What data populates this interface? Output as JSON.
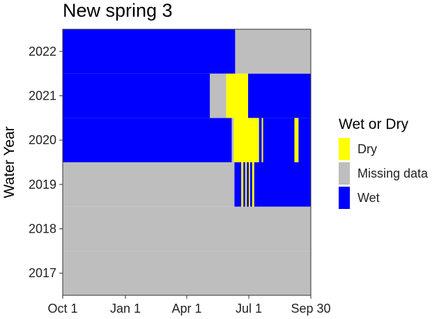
{
  "chart_data": {
    "type": "heatmap",
    "title": "New spring 3",
    "xlabel": "",
    "ylabel": "Water Year",
    "x_ticks": [
      "Oct 1",
      "Jan 1",
      "Apr 1",
      "Jul 1",
      "Sep 30"
    ],
    "x_tick_days": [
      0,
      92,
      182,
      273,
      364
    ],
    "x_range_days": [
      0,
      364
    ],
    "y_categories": [
      "2017",
      "2018",
      "2019",
      "2020",
      "2021",
      "2022"
    ],
    "legend": {
      "title": "Wet or Dry",
      "position": "right",
      "entries": [
        {
          "key": "Dry",
          "label": "Dry",
          "color": "#ffff00"
        },
        {
          "key": "Missing",
          "label": "Missing data",
          "color": "#bebebe"
        },
        {
          "key": "Wet",
          "label": "Wet",
          "color": "#0000ff"
        }
      ]
    },
    "series": [
      {
        "year": "2017",
        "segments": [
          {
            "start": 0,
            "end": 365,
            "status": "Missing"
          }
        ]
      },
      {
        "year": "2018",
        "segments": [
          {
            "start": 0,
            "end": 365,
            "status": "Missing"
          }
        ]
      },
      {
        "year": "2019",
        "segments": [
          {
            "start": 0,
            "end": 252,
            "status": "Missing"
          },
          {
            "start": 252,
            "end": 262,
            "status": "Wet"
          },
          {
            "start": 262,
            "end": 265,
            "status": "Dry"
          },
          {
            "start": 265,
            "end": 268,
            "status": "Wet"
          },
          {
            "start": 268,
            "end": 270,
            "status": "Dry"
          },
          {
            "start": 270,
            "end": 273,
            "status": "Wet"
          },
          {
            "start": 273,
            "end": 275,
            "status": "Dry"
          },
          {
            "start": 275,
            "end": 278,
            "status": "Wet"
          },
          {
            "start": 278,
            "end": 281,
            "status": "Dry"
          },
          {
            "start": 281,
            "end": 365,
            "status": "Wet"
          }
        ]
      },
      {
        "year": "2020",
        "segments": [
          {
            "start": 0,
            "end": 248,
            "status": "Wet"
          },
          {
            "start": 248,
            "end": 251,
            "status": "Missing"
          },
          {
            "start": 251,
            "end": 288,
            "status": "Dry"
          },
          {
            "start": 288,
            "end": 292,
            "status": "Wet"
          },
          {
            "start": 292,
            "end": 294,
            "status": "Dry"
          },
          {
            "start": 294,
            "end": 340,
            "status": "Wet"
          },
          {
            "start": 340,
            "end": 346,
            "status": "Dry"
          },
          {
            "start": 346,
            "end": 365,
            "status": "Wet"
          }
        ]
      },
      {
        "year": "2021",
        "segments": [
          {
            "start": 0,
            "end": 216,
            "status": "Wet"
          },
          {
            "start": 216,
            "end": 240,
            "status": "Missing"
          },
          {
            "start": 240,
            "end": 272,
            "status": "Dry"
          },
          {
            "start": 272,
            "end": 365,
            "status": "Wet"
          }
        ]
      },
      {
        "year": "2022",
        "segments": [
          {
            "start": 0,
            "end": 253,
            "status": "Wet"
          },
          {
            "start": 253,
            "end": 365,
            "status": "Missing"
          }
        ]
      }
    ]
  }
}
